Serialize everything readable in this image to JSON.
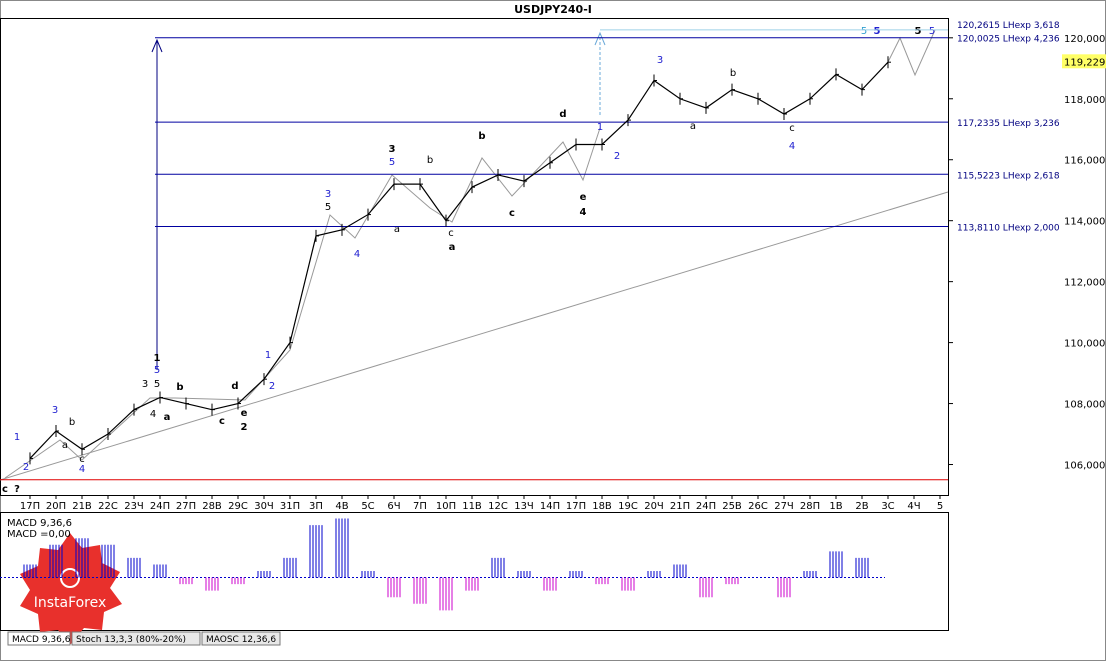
{
  "chart_data": {
    "type": "line",
    "title": "USDJPY240-I",
    "categories": [
      "17П",
      "20П",
      "21В",
      "22С",
      "23Ч",
      "24П",
      "27П",
      "28В",
      "29С",
      "30Ч",
      "31П",
      "3П",
      "4В",
      "5С",
      "6Ч",
      "7П",
      "10П",
      "11В",
      "12С",
      "13Ч",
      "14П",
      "17П",
      "18В",
      "19С",
      "20Ч",
      "21П",
      "24П",
      "25В",
      "26С",
      "27Ч",
      "28П",
      "1В",
      "2В",
      "3С",
      "4Ч",
      "5"
    ],
    "values": [
      106.2,
      107.1,
      106.5,
      107.0,
      107.8,
      108.2,
      108.0,
      107.8,
      108.0,
      108.8,
      110.0,
      113.5,
      113.7,
      114.2,
      115.2,
      115.2,
      114.0,
      115.1,
      115.5,
      115.3,
      115.9,
      116.5,
      116.5,
      117.3,
      118.6,
      118.0,
      117.7,
      118.3,
      118.0,
      117.5,
      118.0,
      118.8,
      118.3,
      119.2,
      null,
      null
    ],
    "color": "#000000",
    "ylim": [
      105,
      120.65
    ],
    "yticks": [
      {
        "value": 106,
        "label": "106,000"
      },
      {
        "value": 108,
        "label": "108,000"
      },
      {
        "value": 110,
        "label": "110,000"
      },
      {
        "value": 112,
        "label": "112,000"
      },
      {
        "value": 114,
        "label": "114,000"
      },
      {
        "value": 116,
        "label": "116,000"
      },
      {
        "value": 118,
        "label": "118,000"
      },
      {
        "value": 120,
        "label": "120,000"
      }
    ],
    "levels": [
      {
        "value": 120.2615,
        "label": "120,2615 LHexp 3,618"
      },
      {
        "value": 120.0025,
        "label": "120,0025 LHexp 4,236"
      },
      {
        "value": 117.2335,
        "label": "117,2335 LHexp 3,236"
      },
      {
        "value": 115.5223,
        "label": "115,5223 LHexp 2,618"
      },
      {
        "value": 113.811,
        "label": "113,8110 LHexp 2,000"
      }
    ],
    "support_level": 105.5,
    "current_price": {
      "value": 119.229,
      "label": "119,229"
    },
    "wave_labels": [
      "1",
      "2",
      "3",
      "4",
      "b",
      "a",
      "c",
      "3",
      "5",
      "1",
      "5",
      "4",
      "a",
      "b",
      "c",
      "d",
      "e",
      "2",
      "1",
      "2",
      "3",
      "5",
      "4",
      "3",
      "5",
      "b",
      "a",
      "c",
      "a",
      "b",
      "c",
      "d",
      "e",
      "4",
      "1",
      "2",
      "3",
      "a",
      "b",
      "c",
      "4",
      "5",
      "5",
      "5",
      "5",
      "c",
      "?"
    ],
    "macd": {
      "labels": [
        "MACD 9,36,6",
        "MACD =0,00"
      ],
      "values": [
        0.2,
        0.5,
        0.6,
        0.5,
        0.3,
        0.2,
        -0.1,
        -0.2,
        -0.1,
        0.1,
        0.3,
        0.8,
        0.9,
        0.1,
        -0.3,
        -0.4,
        -0.5,
        -0.2,
        0.3,
        0.1,
        -0.2,
        0.1,
        -0.1,
        -0.2,
        0.1,
        0.2,
        -0.3,
        -0.1,
        0.0,
        -0.3,
        0.1,
        0.4,
        0.3,
        0.0,
        null,
        null
      ],
      "ylim": [
        -0.8,
        1.0
      ],
      "color": "#cc00cc",
      "pos_color": "#0000cc"
    },
    "tabs": [
      "MACD 9,36,6",
      "Stoch 13,3,3 (80%-20%)",
      "MAOSC 12,36,6"
    ],
    "logo": "InstaForex"
  }
}
